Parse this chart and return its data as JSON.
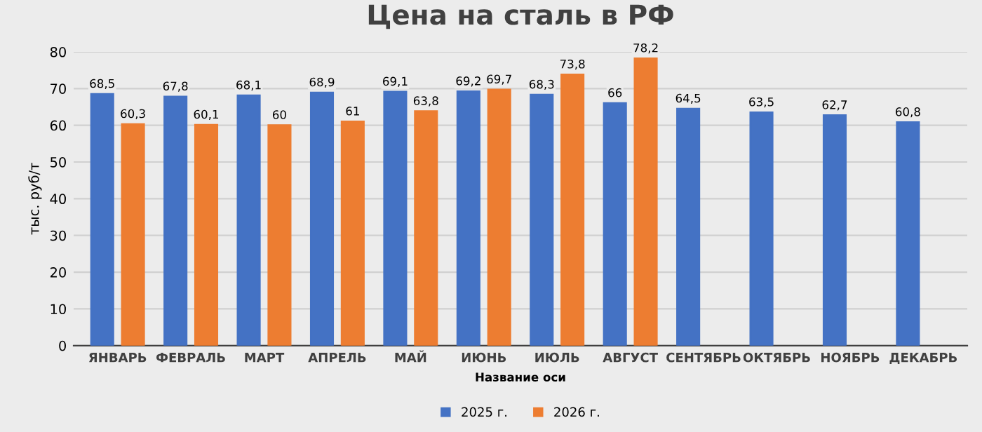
{
  "chart_data": {
    "type": "bar",
    "title": "Цена на сталь в РФ",
    "xlabel": "Название оси",
    "ylabel": "тыс. руб/т",
    "categories": [
      "ЯНВАРЬ",
      "ФЕВРАЛЬ",
      "МАРТ",
      "АПРЕЛЬ",
      "МАЙ",
      "ИЮНЬ",
      "ИЮЛЬ",
      "АВГУСТ",
      "СЕНТЯБРЬ",
      "ОКТЯБРЬ",
      "НОЯБРЬ",
      "ДЕКАБРЬ"
    ],
    "series": [
      {
        "name": "2025 г.",
        "color": "#4472c4",
        "values": [
          68.5,
          67.8,
          68.1,
          68.9,
          69.1,
          69.2,
          68.3,
          66,
          64.5,
          63.5,
          62.7,
          60.8
        ],
        "value_labels": [
          "68,5",
          "67,8",
          "68,1",
          "68,9",
          "69,1",
          "69,2",
          "68,3",
          "66",
          "64,5",
          "63,5",
          "62,7",
          "60,8"
        ]
      },
      {
        "name": "2026 г.",
        "color": "#ed7d31",
        "values": [
          60.3,
          60.1,
          60,
          61,
          63.8,
          69.7,
          73.8,
          78.2,
          null,
          null,
          null,
          null
        ],
        "value_labels": [
          "60,3",
          "60,1",
          "60",
          "61",
          "63,8",
          "69,7",
          "73,8",
          "78,2",
          null,
          null,
          null,
          null
        ]
      }
    ],
    "ylim": [
      0,
      80
    ],
    "yticks": [
      0,
      10,
      20,
      30,
      40,
      50,
      60,
      70,
      80
    ],
    "grid": "y",
    "legend": "bottom"
  }
}
